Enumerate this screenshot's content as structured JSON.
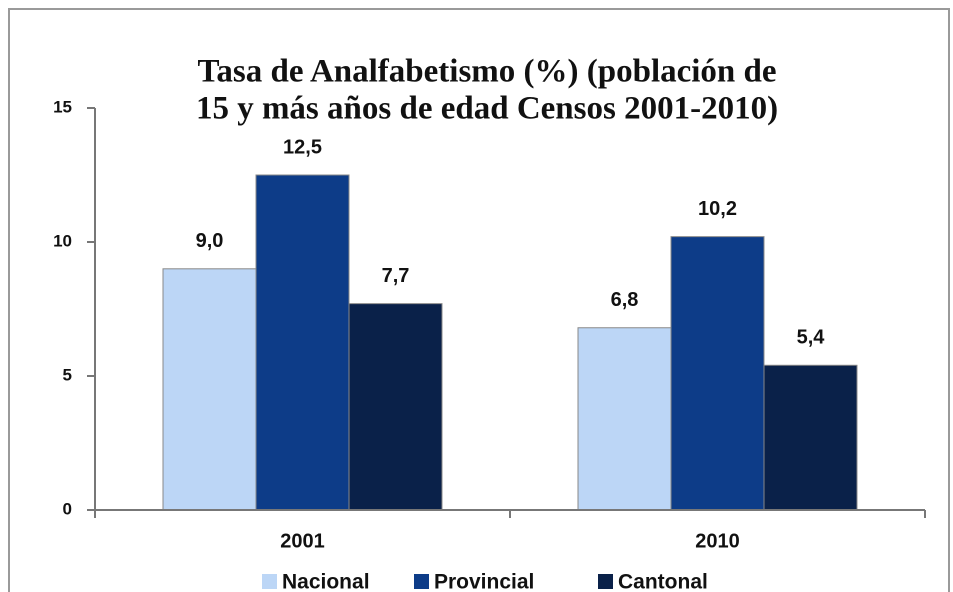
{
  "chart_data": {
    "type": "bar",
    "title": [
      "Tasa de Analfabetismo (%) (población de",
      "15 y más años de edad Censos 2001-2010)"
    ],
    "categories": [
      "2001",
      "2010"
    ],
    "series": [
      {
        "name": "Nacional",
        "color": "#bcd6f6",
        "values": [
          9.0,
          6.8
        ],
        "value_labels": [
          "9,0",
          "6,8"
        ]
      },
      {
        "name": "Provincial",
        "color": "#0d3c88",
        "values": [
          12.5,
          10.2
        ],
        "value_labels": [
          "12,5",
          "10,2"
        ]
      },
      {
        "name": "Cantonal",
        "color": "#0a2149",
        "values": [
          7.7,
          5.4
        ],
        "value_labels": [
          "7,7",
          "5,4"
        ]
      }
    ],
    "ylim": [
      0,
      15
    ],
    "yticks": [
      0,
      5,
      10,
      15
    ],
    "grid": false,
    "legend": "bottom"
  }
}
